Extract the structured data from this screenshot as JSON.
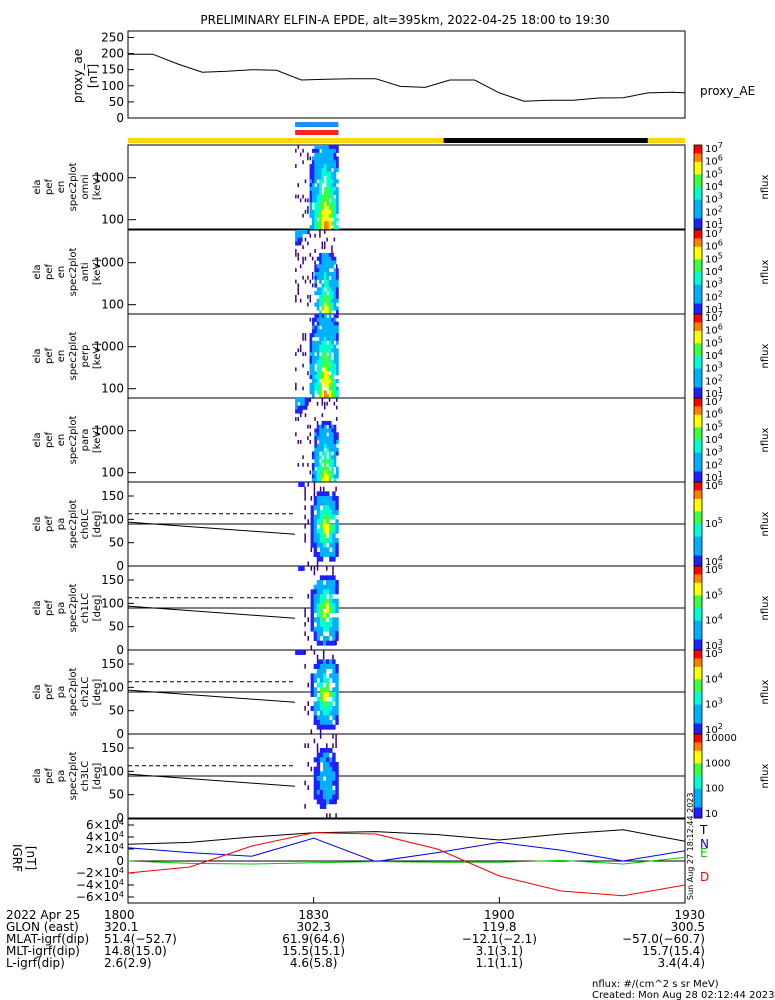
{
  "title": "PRELIMINARY ELFIN-A EPDE, alt=395km, 2022-04-25 18:00 to 19:30",
  "ae_panel": {
    "ylabel_lines": [
      "proxy_ae",
      "[nT]"
    ],
    "ticks": [
      "250",
      "200",
      "150",
      "100",
      "50",
      "0"
    ],
    "legend": "proxy_AE"
  },
  "spec_panels": [
    {
      "ylabel_lines": [
        "ela",
        "pef",
        "en",
        "spec2plot",
        "omni",
        "[keV]"
      ],
      "ticks": [
        "1000",
        "100"
      ],
      "cbar_ticks": [
        "10^7",
        "10^6",
        "10^5",
        "10^4",
        "10^3",
        "10^2",
        "10^1"
      ],
      "cbar_label": "nflux"
    },
    {
      "ylabel_lines": [
        "ela",
        "pef",
        "en",
        "spec2plot",
        "anti",
        "[keV]"
      ],
      "ticks": [
        "1000",
        "100"
      ],
      "cbar_ticks": [
        "10^7",
        "10^6",
        "10^5",
        "10^4",
        "10^3",
        "10^2",
        "10^1"
      ],
      "cbar_label": "nflux"
    },
    {
      "ylabel_lines": [
        "ela",
        "pef",
        "en",
        "spec2plot",
        "perp",
        "[keV]"
      ],
      "ticks": [
        "1000",
        "100"
      ],
      "cbar_ticks": [
        "10^7",
        "10^6",
        "10^5",
        "10^4",
        "10^3",
        "10^2",
        "10^1"
      ],
      "cbar_label": "nflux"
    },
    {
      "ylabel_lines": [
        "ela",
        "pef",
        "en",
        "spec2plot",
        "para",
        "[keV]"
      ],
      "ticks": [
        "1000",
        "100"
      ],
      "cbar_ticks": [
        "10^7",
        "10^6",
        "10^5",
        "10^4",
        "10^3",
        "10^2",
        "10^1"
      ],
      "cbar_label": "nflux"
    }
  ],
  "pa_panels": [
    {
      "ylabel_lines": [
        "ela",
        "pef",
        "pa",
        "spec2plot",
        "ch0LC",
        "[deg]"
      ],
      "ticks": [
        "150",
        "100",
        "50",
        "0"
      ],
      "cbar_ticks": [
        "10^6",
        "10^5",
        "10^4"
      ],
      "cbar_label": "nflux"
    },
    {
      "ylabel_lines": [
        "ela",
        "pef",
        "pa",
        "spec2plot",
        "ch1LC",
        "[deg]"
      ],
      "ticks": [
        "150",
        "100",
        "50",
        "0"
      ],
      "cbar_ticks": [
        "10^6",
        "10^5",
        "10^4",
        "10^3"
      ],
      "cbar_label": "nflux"
    },
    {
      "ylabel_lines": [
        "ela",
        "pef",
        "pa",
        "spec2plot",
        "ch2LC",
        "[deg]"
      ],
      "ticks": [
        "150",
        "100",
        "50",
        "0"
      ],
      "cbar_ticks": [
        "10^5",
        "10^4",
        "10^3",
        "10^2"
      ],
      "cbar_label": "nflux"
    },
    {
      "ylabel_lines": [
        "ela",
        "pef",
        "pa",
        "spec2plot",
        "ch3LC",
        "[deg]"
      ],
      "ticks": [
        "150",
        "100",
        "50",
        "0"
      ],
      "cbar_ticks": [
        "10000",
        "1000",
        "100",
        "10"
      ],
      "cbar_label": "nflux"
    }
  ],
  "igrf_panel": {
    "ylabel_lines": [
      "IGRF",
      "[nT]"
    ],
    "ticks": [
      "6×10^4",
      "4×10^4",
      "2×10^4",
      "0",
      "−2×10^4",
      "−4×10^4",
      "−6×10^4"
    ],
    "legend": [
      {
        "name": "T",
        "color": "#000000"
      },
      {
        "name": "N",
        "color": "#0000ff"
      },
      {
        "name": "E",
        "color": "#00cc00"
      },
      {
        "name": "D",
        "color": "#ff0000"
      }
    ],
    "stamp": "Sun Aug 27 18:12:44 2023"
  },
  "footer": {
    "rows": [
      {
        "label": "2022 Apr 25",
        "values": [
          "1800",
          "1830",
          "1900",
          "1930"
        ]
      },
      {
        "label": "GLON (east)",
        "values": [
          "320.1",
          "302.3",
          "119.8",
          "300.5"
        ]
      },
      {
        "label": "MLAT-igrf(dip)",
        "values": [
          "51.4(−52.7)",
          "61.9(64.6)",
          "−12.1(−2.1)",
          "−57.0(−60.7)"
        ]
      },
      {
        "label": "MLT-igrf(dip)",
        "values": [
          "14.8(15.0)",
          "15.5(15.1)",
          "3.1(3.1)",
          "15.7(15.4)"
        ]
      },
      {
        "label": "L-igrf(dip)",
        "values": [
          "2.6(2.9)",
          "4.6(5.8)",
          "1.1(1.1)",
          "3.4(4.4)"
        ]
      }
    ],
    "note1": "nflux: #/(cm^2 s sr MeV)",
    "note2": "Created: Mon Aug 28 02:12:44 2023"
  },
  "colors": {
    "sci_bar_blue": "#1e90ff",
    "sci_bar_red": "#ff2020",
    "status_yellow": "#ffd700",
    "status_black": "#000000"
  },
  "chart_data": {
    "type": "line",
    "x_range": [
      "18:00",
      "19:30"
    ],
    "x_ticks": [
      "1800",
      "1830",
      "1900",
      "1930"
    ],
    "proxy_ae": {
      "x": [
        "18:00",
        "18:04",
        "18:08",
        "18:12",
        "18:16",
        "18:20",
        "18:24",
        "18:28",
        "18:32",
        "18:36",
        "18:40",
        "18:44",
        "18:48",
        "18:52",
        "18:56",
        "19:00",
        "19:04",
        "19:08",
        "19:12",
        "19:16",
        "19:20",
        "19:24",
        "19:28",
        "19:30"
      ],
      "y": [
        198,
        198,
        168,
        142,
        145,
        150,
        148,
        118,
        120,
        122,
        122,
        98,
        95,
        118,
        118,
        78,
        52,
        55,
        55,
        62,
        63,
        78,
        80,
        78
      ],
      "ylim": [
        0,
        270
      ]
    },
    "status_bar": [
      {
        "from": "18:00",
        "to": "18:51",
        "state": "yellow"
      },
      {
        "from": "18:51",
        "to": "19:24",
        "state": "black"
      },
      {
        "from": "19:24",
        "to": "19:30",
        "state": "yellow"
      }
    ],
    "science_zone": {
      "from": "18:27",
      "to": "18:34"
    },
    "spectrogram_burst": {
      "from": "18:27",
      "to": "18:34",
      "peak": "18:32"
    },
    "igrf": {
      "x": [
        "18:00",
        "18:10",
        "18:20",
        "18:30",
        "18:40",
        "18:50",
        "19:00",
        "19:10",
        "19:20",
        "19:30"
      ],
      "series": [
        {
          "name": "T",
          "y": [
            28000,
            31000,
            40000,
            47000,
            49000,
            44000,
            35000,
            45000,
            52000,
            33000
          ]
        },
        {
          "name": "N",
          "y": [
            22000,
            14000,
            8000,
            38000,
            -1000,
            14000,
            31000,
            18000,
            0,
            17000
          ]
        },
        {
          "name": "E",
          "y": [
            0,
            -4000,
            -5000,
            -3000,
            -1000,
            -2000,
            -2000,
            1000,
            -5000,
            6000
          ]
        },
        {
          "name": "D",
          "y": [
            -20000,
            -10000,
            25000,
            47000,
            45000,
            20000,
            -25000,
            -50000,
            -58000,
            -40000
          ]
        }
      ],
      "ylim": [
        -70000,
        70000
      ]
    }
  }
}
